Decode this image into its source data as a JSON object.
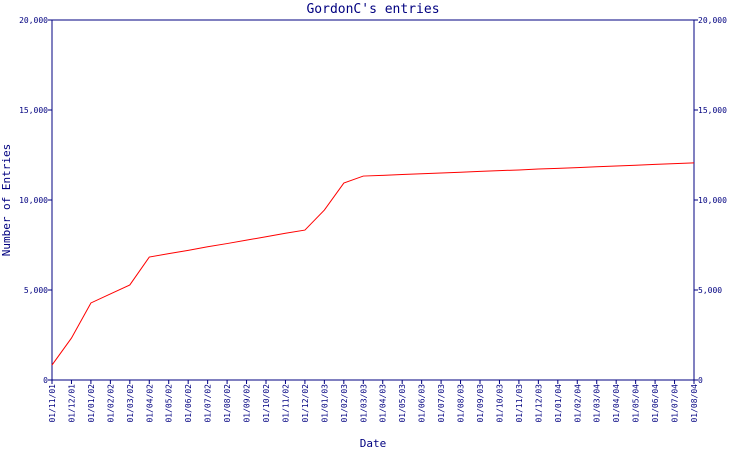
{
  "chart_data": {
    "type": "line",
    "title": "GordonC's entries",
    "x_label": "Date",
    "y_label": "Number of Entries",
    "categories": [
      "01/11/01",
      "01/12/01",
      "01/01/02",
      "01/02/02",
      "01/03/02",
      "01/04/02",
      "01/05/02",
      "01/06/02",
      "01/07/02",
      "01/08/02",
      "01/09/02",
      "01/10/02",
      "01/11/02",
      "01/12/02",
      "01/01/03",
      "01/02/03",
      "01/03/03",
      "01/04/03",
      "01/05/03",
      "01/06/03",
      "01/07/03",
      "01/08/03",
      "01/09/03",
      "01/10/03",
      "01/11/03",
      "01/12/03",
      "01/01/04",
      "01/02/04",
      "01/03/04",
      "01/04/04",
      "01/05/04",
      "01/06/04",
      "01/07/04",
      "01/08/04"
    ],
    "series": [
      {
        "name": "Entries",
        "color": "#ff0000",
        "values": [
          830,
          2330,
          4280,
          4780,
          5280,
          6830,
          7020,
          7200,
          7400,
          7580,
          7770,
          7960,
          8150,
          8330,
          9440,
          10940,
          11330,
          11370,
          11420,
          11460,
          11500,
          11540,
          11590,
          11630,
          11670,
          11720,
          11760,
          11800,
          11850,
          11890,
          11930,
          11980,
          12020,
          12060
        ]
      }
    ],
    "ylim": [
      0,
      20000
    ],
    "yticks": [
      0,
      {
        "value": 5000,
        "label": "5,000"
      },
      {
        "value": 10000,
        "label": "10,000"
      },
      {
        "value": 15000,
        "label": "15,000"
      },
      {
        "value": 20000,
        "label": "20,000"
      }
    ],
    "y2lim": [
      0,
      20000
    ],
    "y2ticks": [
      0,
      {
        "value": 5000,
        "label": "5,000"
      },
      {
        "value": 10000,
        "label": "10,000"
      },
      {
        "value": 15000,
        "label": "15,000"
      },
      {
        "value": 20000,
        "label": "20,000"
      }
    ],
    "axis_color": "#000080"
  }
}
